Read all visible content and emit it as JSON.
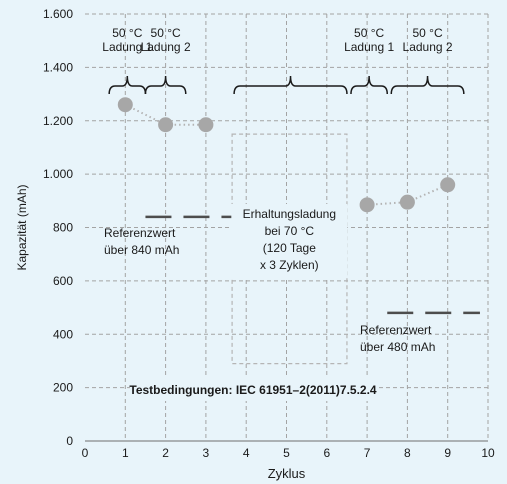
{
  "chart_data": {
    "type": "scatter",
    "xlabel": "Zyklus",
    "ylabel": "Kapazität (mAh)",
    "xlim": [
      0,
      10
    ],
    "ylim": [
      0,
      1600
    ],
    "xticks": [
      0,
      1,
      2,
      3,
      4,
      5,
      6,
      7,
      8,
      9,
      10
    ],
    "xtick_labels": [
      "0",
      "1",
      "2",
      "3",
      "4",
      "5",
      "6",
      "7",
      "8",
      "9",
      "10"
    ],
    "yticks": [
      0,
      200,
      400,
      600,
      800,
      1000,
      1200,
      1400,
      1600
    ],
    "ytick_labels": [
      "0",
      "200",
      "400",
      "600",
      "800",
      "1.000",
      "1.200",
      "1.400",
      "1.600"
    ],
    "grid": true,
    "series": [
      {
        "values": [
          {
            "x": 1,
            "y": 1260
          },
          {
            "x": 2,
            "y": 1185
          },
          {
            "x": 3,
            "y": 1185
          }
        ]
      },
      {
        "values": [
          {
            "x": 7,
            "y": 885
          },
          {
            "x": 8,
            "y": 895
          },
          {
            "x": 9,
            "y": 960
          }
        ]
      }
    ],
    "reference_lines": [
      {
        "x_from": 1.5,
        "x_to": 4.1,
        "y": 840,
        "label": [
          "Referenzwert",
          "über 840 mAh"
        ]
      },
      {
        "x_from": 7.5,
        "x_to": 9.8,
        "y": 480,
        "label": [
          "Referenzwert",
          "über 480 mAh"
        ]
      }
    ],
    "brackets": [
      {
        "x_from": 0.6,
        "x_to": 1.5,
        "label": [
          "50 °C",
          "Ladung 1"
        ]
      },
      {
        "x_from": 1.5,
        "x_to": 2.5,
        "label": [
          "50 °C",
          "Ladung 2"
        ]
      },
      {
        "x_from": 3.7,
        "x_to": 6.5,
        "label": []
      },
      {
        "x_from": 6.6,
        "x_to": 7.5,
        "label": [
          "50 °C",
          "Ladung 1"
        ]
      },
      {
        "x_from": 7.6,
        "x_to": 9.4,
        "label": [
          "50 °C",
          "Ladung 2"
        ]
      }
    ],
    "annotations": [
      {
        "lines": [
          "Erhaltungsladung",
          "bei 70 °C",
          "(120 Tage",
          "x 3 Zyklen)"
        ]
      },
      {
        "lines": [
          "Testbedingungen: IEC 61951–2(2011)7.5.2.4"
        ]
      }
    ],
    "colors": {
      "marker": "#a7a7a7",
      "connector": "#b3b3b3",
      "reference": "#4d4d4d",
      "grid": "#a3a3a3",
      "background": "#e8f4fa"
    }
  }
}
